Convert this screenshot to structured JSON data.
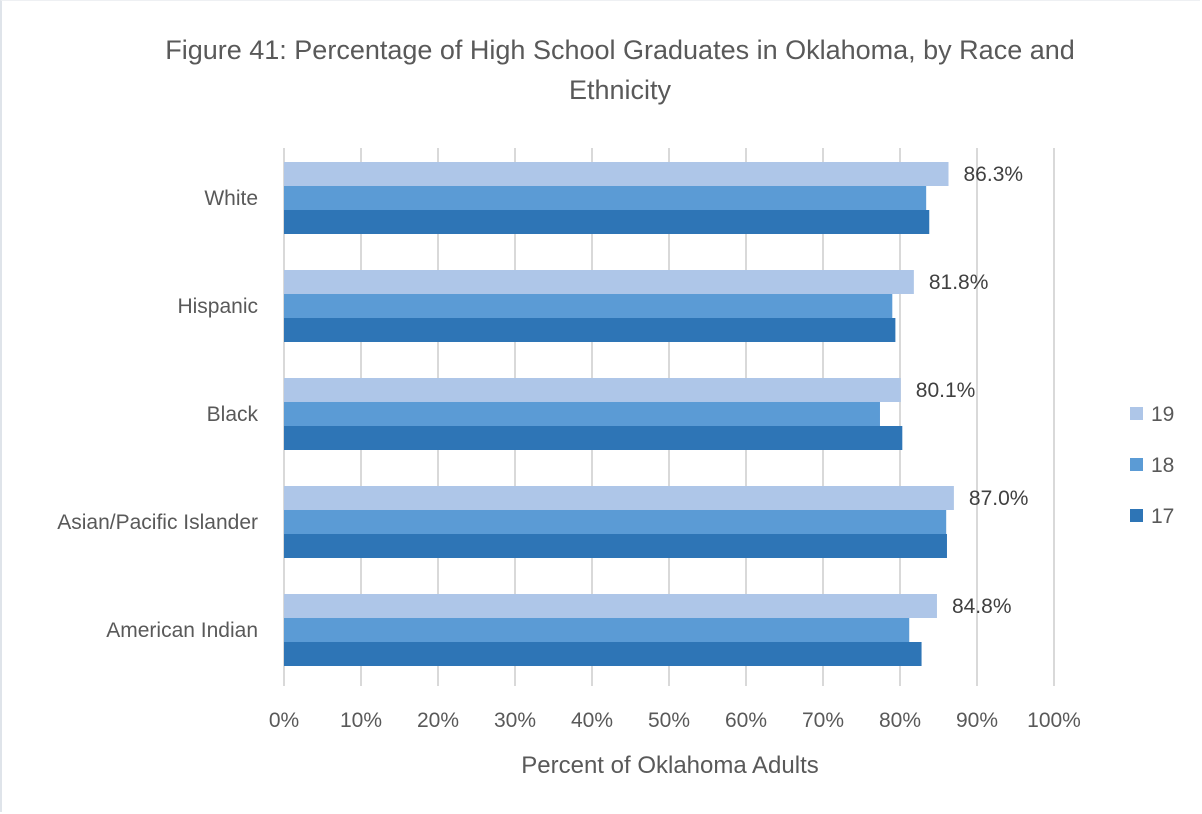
{
  "chart_data": {
    "type": "bar",
    "orientation": "horizontal",
    "title": "Figure 41: Percentage of High School Graduates in Oklahoma, by Race and Ethnicity",
    "xlabel": "Percent of Oklahoma Adults",
    "ylabel": "",
    "xlim": [
      0,
      100
    ],
    "x_ticks": [
      "0%",
      "10%",
      "20%",
      "30%",
      "40%",
      "50%",
      "60%",
      "70%",
      "80%",
      "90%",
      "100%"
    ],
    "categories": [
      "White",
      "Hispanic",
      "Black",
      "Asian/Pacific Islander",
      "American Indian"
    ],
    "series": [
      {
        "name": "19",
        "color": "#aec6e8",
        "values": [
          86.3,
          81.8,
          80.1,
          87.0,
          84.8
        ]
      },
      {
        "name": "18",
        "color": "#5b9bd5",
        "values": [
          83.4,
          79.0,
          77.4,
          86.0,
          81.2
        ]
      },
      {
        "name": "17",
        "color": "#2e75b6",
        "values": [
          83.8,
          79.4,
          80.3,
          86.1,
          82.8
        ]
      }
    ],
    "data_labels": [
      "86.3%",
      "81.8%",
      "80.1%",
      "87.0%",
      "84.8%"
    ],
    "legend_position": "right",
    "grid": true
  }
}
